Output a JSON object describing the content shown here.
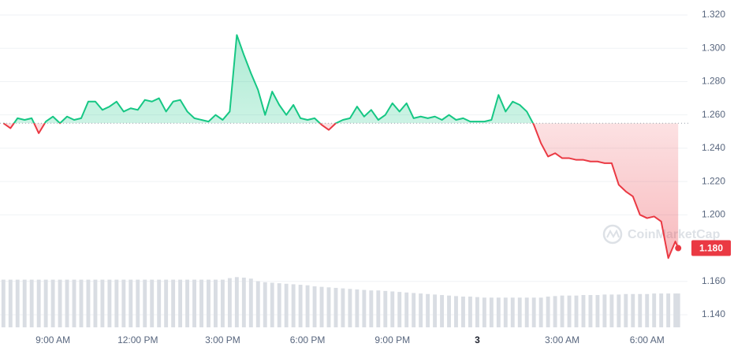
{
  "chart_data": {
    "type": "line",
    "watermark": "CoinMarketCap",
    "up_color": "#16c784",
    "down_color": "#ea3943",
    "volume_color": "#d9dde3",
    "baseline": 1.255,
    "grid": true,
    "xlim": [
      7.13,
      31.15
    ],
    "ylim": [
      1.14,
      1.32
    ],
    "volume_ylim": [
      0,
      100
    ],
    "xticks": [
      {
        "value": 9,
        "label": "9:00 AM"
      },
      {
        "value": 12,
        "label": "12:00 PM"
      },
      {
        "value": 15,
        "label": "3:00 PM"
      },
      {
        "value": 18,
        "label": "6:00 PM"
      },
      {
        "value": 21,
        "label": "9:00 PM"
      },
      {
        "value": 24,
        "label": "3",
        "bold": true
      },
      {
        "value": 27,
        "label": "3:00 AM"
      },
      {
        "value": 30,
        "label": "6:00 AM"
      }
    ],
    "yticks": [
      {
        "value": 1.32,
        "label": "1.320"
      },
      {
        "value": 1.3,
        "label": "1.300"
      },
      {
        "value": 1.28,
        "label": "1.280"
      },
      {
        "value": 1.26,
        "label": "1.260"
      },
      {
        "value": 1.24,
        "label": "1.240"
      },
      {
        "value": 1.22,
        "label": "1.220"
      },
      {
        "value": 1.2,
        "label": "1.200"
      },
      {
        "value": 1.16,
        "label": "1.160"
      },
      {
        "value": 1.14,
        "label": "1.140"
      }
    ],
    "current_price": {
      "value": 1.18,
      "label": "1.180"
    },
    "series": [
      {
        "x": [
          7.25,
          7.5,
          7.75,
          8,
          8.25,
          8.5,
          8.75,
          9,
          9.25,
          9.5,
          9.75,
          10,
          10.25,
          10.5,
          10.75,
          11,
          11.25,
          11.5,
          11.75,
          12,
          12.25,
          12.5,
          12.75,
          13,
          13.25,
          13.5,
          13.75,
          14,
          14.25,
          14.5,
          14.75,
          15,
          15.25,
          15.5,
          15.75,
          16,
          16.25,
          16.5,
          16.75,
          17,
          17.25,
          17.5,
          17.75,
          18,
          18.25,
          18.5,
          18.75,
          19,
          19.25,
          19.5,
          19.75,
          20,
          20.25,
          20.5,
          20.75,
          21,
          21.25,
          21.5,
          21.75,
          22,
          22.25,
          22.5,
          22.75,
          23,
          23.25,
          23.5,
          23.75,
          24,
          24.25,
          24.5,
          24.75,
          25,
          25.25,
          25.5,
          25.75,
          26,
          26.25,
          26.5,
          26.75,
          27,
          27.25,
          27.5,
          27.75,
          28,
          28.25,
          28.5,
          28.75,
          29,
          29.25,
          29.5,
          29.75,
          30,
          30.25,
          30.5,
          30.75,
          31,
          31.1
        ],
        "values": [
          1.255,
          1.252,
          1.258,
          1.257,
          1.258,
          1.249,
          1.256,
          1.259,
          1.255,
          1.259,
          1.257,
          1.258,
          1.268,
          1.268,
          1.263,
          1.265,
          1.268,
          1.262,
          1.264,
          1.263,
          1.269,
          1.268,
          1.27,
          1.262,
          1.268,
          1.269,
          1.262,
          1.258,
          1.257,
          1.256,
          1.26,
          1.257,
          1.262,
          1.308,
          1.296,
          1.285,
          1.275,
          1.26,
          1.274,
          1.266,
          1.26,
          1.266,
          1.258,
          1.257,
          1.258,
          1.254,
          1.251,
          1.255,
          1.257,
          1.258,
          1.265,
          1.259,
          1.263,
          1.257,
          1.26,
          1.267,
          1.262,
          1.267,
          1.258,
          1.259,
          1.258,
          1.259,
          1.257,
          1.26,
          1.257,
          1.258,
          1.256,
          1.256,
          1.256,
          1.257,
          1.272,
          1.262,
          1.268,
          1.266,
          1.262,
          1.254,
          1.243,
          1.235,
          1.237,
          1.234,
          1.234,
          1.233,
          1.233,
          1.232,
          1.232,
          1.231,
          1.231,
          1.218,
          1.214,
          1.211,
          1.2,
          1.198,
          1.199,
          1.196,
          1.174,
          1.184,
          1.18
        ],
        "volume": [
          93,
          93,
          93,
          93,
          93,
          93,
          93,
          93,
          93,
          93,
          93,
          93,
          93,
          93,
          93,
          93,
          93,
          93,
          93,
          93,
          93,
          93,
          93,
          93,
          93,
          93,
          93,
          93,
          93,
          93,
          93,
          93,
          96,
          98,
          97,
          95,
          90,
          88,
          87,
          86,
          85,
          84,
          83,
          82,
          80,
          79,
          78,
          77,
          76,
          75,
          74,
          73,
          72,
          72,
          71,
          70,
          69,
          68,
          67,
          66,
          65,
          64,
          63,
          62,
          61,
          60,
          60,
          59,
          58,
          58,
          58,
          58,
          58,
          58,
          58,
          58,
          58,
          60,
          61,
          62,
          62,
          62,
          63,
          63,
          63,
          64,
          64,
          64,
          65,
          65,
          65,
          65,
          66,
          66,
          66,
          66,
          66
        ]
      }
    ]
  }
}
